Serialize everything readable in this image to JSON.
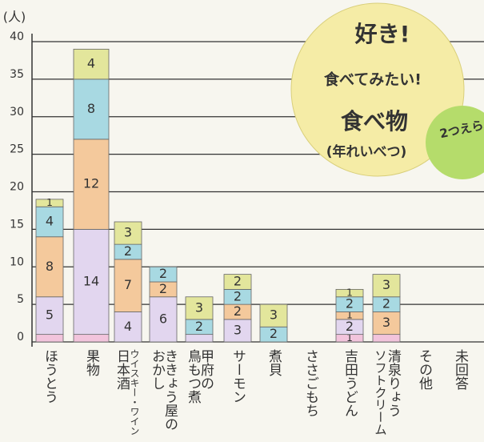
{
  "chart_data": {
    "type": "stacked-bar",
    "y_unit": "(人)",
    "title_lines": [
      "好き!",
      "食べてみたい!",
      "食べ物",
      "(年れいべつ)"
    ],
    "note": "2つえらぶ",
    "categories": [
      [
        "ほうとう"
      ],
      [
        "果物"
      ],
      [
        "ウイスキー・ワイン",
        "日本酒"
      ],
      [
        "ききょう屋の",
        "おかし"
      ],
      [
        "甲府の",
        "鳥もつ煮"
      ],
      [
        "サーモン"
      ],
      [
        "煮貝"
      ],
      [
        "ささごもち"
      ],
      [
        "吉田うどん"
      ],
      [
        "清泉りょう",
        "ソフトクリーム"
      ],
      [
        "その他"
      ],
      [
        "未回答"
      ]
    ],
    "series": [
      {
        "color": "#f2c4dc",
        "values": [
          1,
          1,
          null,
          null,
          null,
          null,
          null,
          null,
          1,
          1,
          null,
          null
        ],
        "value_labels": [
          null,
          null,
          null,
          null,
          null,
          null,
          null,
          null,
          "1",
          null,
          null,
          null
        ]
      },
      {
        "color": "#e2d6ef",
        "values": [
          5,
          14,
          4,
          6,
          1,
          3,
          null,
          null,
          2,
          null,
          null,
          null
        ],
        "value_labels": [
          "5",
          "14",
          "4",
          "6",
          null,
          "3",
          null,
          null,
          "2",
          null,
          null,
          null
        ]
      },
      {
        "color": "#f4c99c",
        "values": [
          8,
          12,
          7,
          2,
          null,
          2,
          null,
          null,
          1,
          3,
          null,
          null
        ],
        "value_labels": [
          "8",
          "12",
          "7",
          "2",
          null,
          "2",
          null,
          null,
          "1",
          "3",
          null,
          null
        ]
      },
      {
        "color": "#a8d9e2",
        "values": [
          4,
          8,
          2,
          2,
          2,
          2,
          2,
          null,
          2,
          2,
          null,
          null
        ],
        "value_labels": [
          "4",
          "8",
          "2",
          "2",
          "2",
          "2",
          "2",
          null,
          "2",
          "2",
          null,
          null
        ]
      },
      {
        "color": "#e3e69c",
        "values": [
          1,
          4,
          3,
          null,
          3,
          2,
          3,
          null,
          1,
          3,
          null,
          null
        ],
        "value_labels": [
          "1",
          "4",
          "3",
          null,
          "3",
          "2",
          "3",
          null,
          "1",
          "3",
          null,
          null
        ]
      }
    ],
    "ylim": [
      0,
      40
    ],
    "yticks": [
      0,
      5,
      10,
      15,
      20,
      25,
      30,
      35,
      40
    ],
    "grid": true
  }
}
